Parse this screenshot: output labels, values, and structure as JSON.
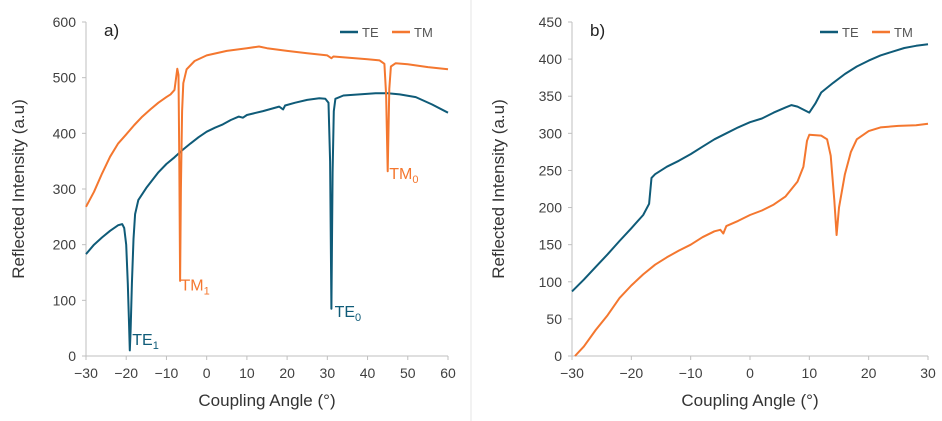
{
  "colors": {
    "TE": "#0f5b78",
    "TM": "#f4772f",
    "axis": "#bfbfbf",
    "divider": "#e6e6e6"
  },
  "chart_data": [
    {
      "type": "line",
      "panel_label": "a)",
      "xlabel": "Coupling Angle (°)",
      "ylabel": "Reflected Intensity (a.u)",
      "xlim": [
        -30,
        60
      ],
      "ylim": [
        0,
        600
      ],
      "xticks": [
        "-30",
        "-20",
        "-10",
        "0",
        "10",
        "20",
        "30",
        "40",
        "50",
        "60"
      ],
      "yticks": [
        "0",
        "100",
        "200",
        "300",
        "400",
        "500",
        "600"
      ],
      "legend": {
        "placement": "top-right",
        "entries": [
          "TE",
          "TM"
        ]
      },
      "grid": false,
      "series": [
        {
          "name": "TE",
          "points": [
            [
              -30,
              183
            ],
            [
              -28,
              200
            ],
            [
              -26,
              213
            ],
            [
              -24,
              225
            ],
            [
              -22,
              235
            ],
            [
              -21,
              237
            ],
            [
              -20.5,
              230
            ],
            [
              -20,
              200
            ],
            [
              -19.6,
              130
            ],
            [
              -19.3,
              60
            ],
            [
              -19.1,
              10
            ],
            [
              -18.9,
              45
            ],
            [
              -18.6,
              130
            ],
            [
              -18.2,
              210
            ],
            [
              -17.8,
              255
            ],
            [
              -17,
              280
            ],
            [
              -15,
              302
            ],
            [
              -12,
              330
            ],
            [
              -10,
              345
            ],
            [
              -8,
              357
            ],
            [
              -6,
              370
            ],
            [
              -4,
              382
            ],
            [
              -2,
              393
            ],
            [
              0,
              403
            ],
            [
              2,
              410
            ],
            [
              4,
              416
            ],
            [
              6,
              424
            ],
            [
              8,
              430
            ],
            [
              9,
              428
            ],
            [
              10,
              433
            ],
            [
              14,
              440
            ],
            [
              18,
              448
            ],
            [
              19,
              443
            ],
            [
              19.5,
              450
            ],
            [
              22,
              455
            ],
            [
              25,
              460
            ],
            [
              28,
              463
            ],
            [
              29.5,
              462
            ],
            [
              30.3,
              455
            ],
            [
              30.7,
              350
            ],
            [
              31,
              85
            ],
            [
              31.3,
              330
            ],
            [
              31.6,
              440
            ],
            [
              32,
              462
            ],
            [
              34,
              468
            ],
            [
              38,
              470
            ],
            [
              42,
              472
            ],
            [
              45,
              472
            ],
            [
              48,
              470
            ],
            [
              52,
              465
            ],
            [
              56,
              452
            ],
            [
              60,
              437
            ]
          ]
        },
        {
          "name": "TM",
          "points": [
            [
              -30,
              268
            ],
            [
              -28,
              295
            ],
            [
              -26,
              328
            ],
            [
              -24,
              358
            ],
            [
              -22,
              382
            ],
            [
              -20,
              398
            ],
            [
              -18,
              415
            ],
            [
              -16,
              430
            ],
            [
              -14,
              443
            ],
            [
              -12,
              455
            ],
            [
              -10,
              465
            ],
            [
              -9,
              470
            ],
            [
              -8,
              478
            ],
            [
              -7.6,
              500
            ],
            [
              -7.3,
              516
            ],
            [
              -7.0,
              505
            ],
            [
              -6.8,
              350
            ],
            [
              -6.6,
              135
            ],
            [
              -6.4,
              300
            ],
            [
              -6.1,
              440
            ],
            [
              -5.8,
              490
            ],
            [
              -5,
              515
            ],
            [
              -3,
              530
            ],
            [
              0,
              540
            ],
            [
              5,
              548
            ],
            [
              10,
              553
            ],
            [
              13,
              556
            ],
            [
              15,
              553
            ],
            [
              20,
              548
            ],
            [
              25,
              544
            ],
            [
              30,
              540
            ],
            [
              31,
              535
            ],
            [
              31.5,
              538
            ],
            [
              35,
              536
            ],
            [
              40,
              533
            ],
            [
              43,
              531
            ],
            [
              44.2,
              525
            ],
            [
              44.6,
              470
            ],
            [
              45,
              332
            ],
            [
              45.4,
              480
            ],
            [
              45.8,
              520
            ],
            [
              47,
              526
            ],
            [
              50,
              524
            ],
            [
              55,
              519
            ],
            [
              60,
              515
            ]
          ]
        }
      ],
      "annotations": [
        {
          "series": "TE",
          "text": "TE",
          "sub": "1",
          "x": -18.5,
          "y": 20
        },
        {
          "series": "TE",
          "text": "TE",
          "sub": "0",
          "x": 31.8,
          "y": 70
        },
        {
          "series": "TM",
          "text": "TM",
          "sub": "1",
          "x": -6.5,
          "y": 118
        },
        {
          "series": "TM",
          "text": "TM",
          "sub": "0",
          "x": 45.4,
          "y": 318
        }
      ]
    },
    {
      "type": "line",
      "panel_label": "b)",
      "xlabel": "Coupling Angle (°)",
      "ylabel": "Reflected Intensity (a.u)",
      "xlim": [
        -30,
        30
      ],
      "ylim": [
        0,
        450
      ],
      "xticks": [
        "-30",
        "-20",
        "-10",
        "0",
        "10",
        "20",
        "30"
      ],
      "yticks": [
        "0",
        "50",
        "100",
        "150",
        "200",
        "250",
        "300",
        "350",
        "400",
        "450"
      ],
      "legend": {
        "placement": "top-right",
        "entries": [
          "TE",
          "TM"
        ]
      },
      "grid": false,
      "series": [
        {
          "name": "TE",
          "points": [
            [
              -30,
              87
            ],
            [
              -28,
              103
            ],
            [
              -26,
              120
            ],
            [
              -24,
              137
            ],
            [
              -22,
              155
            ],
            [
              -20,
              172
            ],
            [
              -18,
              190
            ],
            [
              -17,
              205
            ],
            [
              -16.6,
              240
            ],
            [
              -16,
              245
            ],
            [
              -14,
              255
            ],
            [
              -12,
              263
            ],
            [
              -10,
              272
            ],
            [
              -8,
              282
            ],
            [
              -6,
              292
            ],
            [
              -4,
              300
            ],
            [
              -2,
              308
            ],
            [
              0,
              315
            ],
            [
              2,
              320
            ],
            [
              4,
              328
            ],
            [
              6,
              335
            ],
            [
              7,
              338
            ],
            [
              8,
              336
            ],
            [
              9,
              332
            ],
            [
              10,
              328
            ],
            [
              11,
              340
            ],
            [
              12,
              355
            ],
            [
              14,
              368
            ],
            [
              16,
              380
            ],
            [
              18,
              390
            ],
            [
              20,
              398
            ],
            [
              22,
              405
            ],
            [
              24,
              410
            ],
            [
              26,
              415
            ],
            [
              28,
              418
            ],
            [
              30,
              420
            ]
          ]
        },
        {
          "name": "TM",
          "points": [
            [
              -29.5,
              0
            ],
            [
              -28,
              13
            ],
            [
              -26,
              35
            ],
            [
              -24,
              55
            ],
            [
              -22,
              78
            ],
            [
              -20,
              95
            ],
            [
              -18,
              110
            ],
            [
              -16,
              123
            ],
            [
              -14,
              133
            ],
            [
              -12,
              142
            ],
            [
              -10,
              150
            ],
            [
              -8,
              160
            ],
            [
              -6,
              168
            ],
            [
              -5,
              170
            ],
            [
              -4.5,
              165
            ],
            [
              -4,
              175
            ],
            [
              -2,
              182
            ],
            [
              0,
              190
            ],
            [
              2,
              196
            ],
            [
              4,
              204
            ],
            [
              6,
              215
            ],
            [
              8,
              235
            ],
            [
              9,
              255
            ],
            [
              9.6,
              290
            ],
            [
              10,
              298
            ],
            [
              12,
              297
            ],
            [
              13,
              292
            ],
            [
              13.6,
              270
            ],
            [
              14.2,
              210
            ],
            [
              14.6,
              163
            ],
            [
              15,
              200
            ],
            [
              16,
              245
            ],
            [
              17,
              275
            ],
            [
              18,
              292
            ],
            [
              20,
              303
            ],
            [
              22,
              308
            ],
            [
              25,
              310
            ],
            [
              28,
              311
            ],
            [
              30,
              313
            ]
          ]
        }
      ],
      "annotations": []
    }
  ]
}
